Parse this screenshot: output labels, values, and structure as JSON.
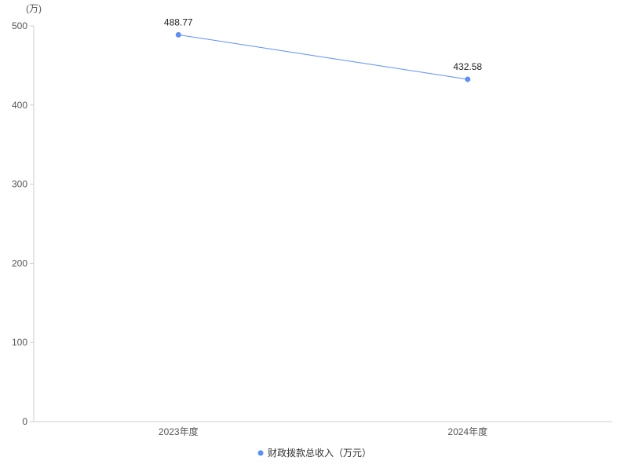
{
  "chart_data": {
    "type": "line",
    "title": "",
    "xlabel": "",
    "ylabel": "(万)",
    "categories": [
      "2023年度",
      "2024年度"
    ],
    "series": [
      {
        "name": "财政拨款总收入（万元）",
        "values": [
          488.77,
          432.58
        ],
        "labels": [
          "488.77",
          "432.58"
        ],
        "color": "#5b8ff9"
      }
    ],
    "ylim": [
      0,
      500
    ],
    "yticks": [
      0,
      100,
      200,
      300,
      400,
      500
    ],
    "grid": false,
    "legend": "bottom"
  }
}
